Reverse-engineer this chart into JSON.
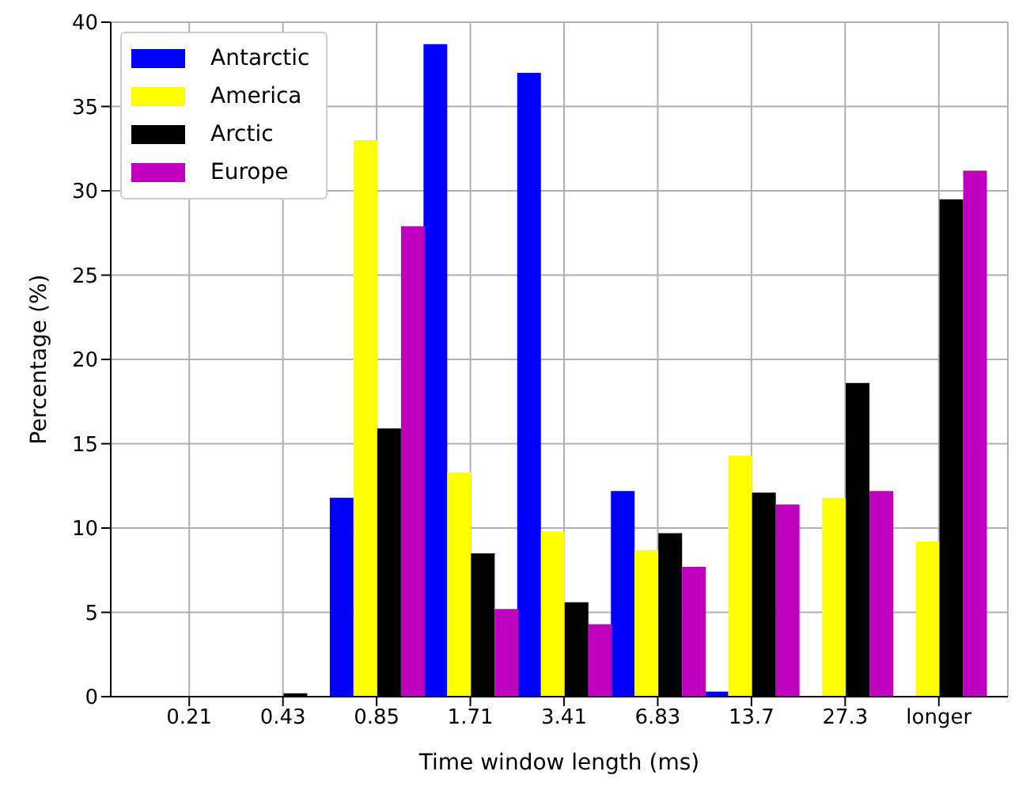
{
  "chart_data": {
    "type": "bar",
    "xlabel": "Time window length (ms)",
    "ylabel": "Percentage (%)",
    "categories": [
      "0.21",
      "0.43",
      "0.85",
      "1.71",
      "3.41",
      "6.83",
      "13.7",
      "27.3",
      "longer"
    ],
    "series": [
      {
        "name": "Antarctic",
        "color": "#0000ff",
        "values": [
          0,
          0,
          11.8,
          38.7,
          37.0,
          12.2,
          0.3,
          0,
          0
        ]
      },
      {
        "name": "America",
        "color": "#ffff00",
        "values": [
          0,
          0,
          33.0,
          13.3,
          9.8,
          8.7,
          14.3,
          11.8,
          9.2
        ]
      },
      {
        "name": "Arctic",
        "color": "#000000",
        "values": [
          0,
          0.2,
          15.9,
          8.5,
          5.6,
          9.7,
          12.1,
          18.6,
          29.5
        ]
      },
      {
        "name": "Europe",
        "color": "#bf00bf",
        "values": [
          0,
          0,
          27.9,
          5.2,
          4.3,
          7.7,
          11.4,
          12.2,
          31.2
        ]
      }
    ],
    "ylim": [
      0,
      40
    ],
    "yticks": [
      0,
      5,
      10,
      15,
      20,
      25,
      30,
      35,
      40
    ],
    "grid": true,
    "legend": "top left"
  }
}
